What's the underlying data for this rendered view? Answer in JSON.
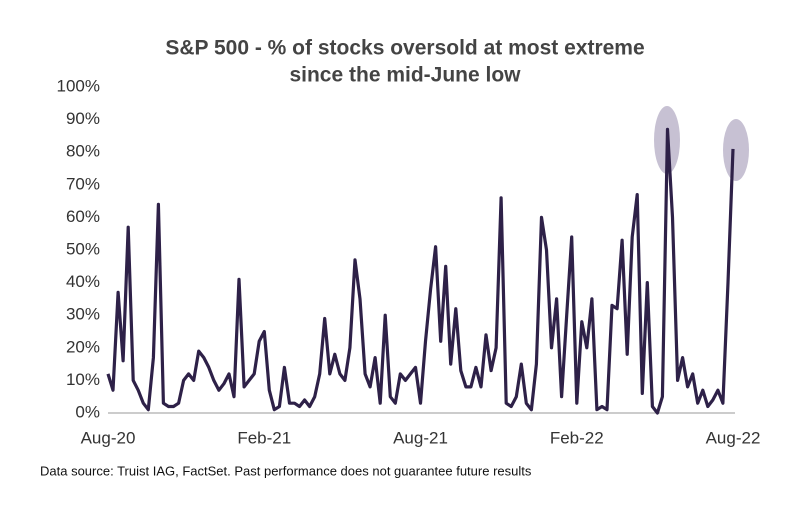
{
  "chart_data": {
    "type": "line",
    "title": [
      "S&P 500 - % of stocks oversold at most extreme",
      "since the mid-June low"
    ],
    "source": "Data source: Truist IAG, FactSet. Past performance does not guarantee future results",
    "categories": [
      "Aug-20",
      null,
      null,
      null,
      null,
      null,
      null,
      null,
      null,
      null,
      null,
      null,
      null,
      null,
      null,
      null,
      null,
      null,
      null,
      null,
      null,
      null,
      null,
      null,
      null,
      null,
      null,
      null,
      null,
      null,
      null,
      "Feb-21",
      null,
      null,
      null,
      null,
      null,
      null,
      null,
      null,
      null,
      null,
      null,
      null,
      null,
      null,
      null,
      null,
      null,
      null,
      null,
      null,
      null,
      null,
      null,
      null,
      null,
      null,
      null,
      null,
      null,
      null,
      "Aug-21",
      null,
      null,
      null,
      null,
      null,
      null,
      null,
      null,
      null,
      null,
      null,
      null,
      null,
      null,
      null,
      null,
      null,
      null,
      null,
      null,
      null,
      null,
      null,
      null,
      null,
      null,
      null,
      null,
      null,
      null,
      "Feb-22",
      null,
      null,
      null,
      null,
      null,
      null,
      null,
      null,
      null,
      null,
      null,
      null,
      null,
      null,
      null,
      null,
      null,
      null,
      null,
      null,
      null,
      null,
      null,
      null,
      null,
      null,
      null,
      null,
      null,
      null,
      "Aug-22"
    ],
    "values": [
      12,
      7,
      37,
      16,
      57,
      10,
      7,
      3,
      1,
      17,
      64,
      3,
      2,
      2,
      3,
      10,
      12,
      10,
      19,
      17,
      14,
      10,
      7,
      9,
      12,
      5,
      41,
      8,
      10,
      12,
      22,
      25,
      7,
      1,
      2,
      14,
      3,
      3,
      2,
      4,
      2,
      5,
      12,
      29,
      12,
      18,
      12,
      10,
      20,
      47,
      35,
      12,
      8,
      17,
      3,
      30,
      5,
      3,
      12,
      10,
      12,
      14,
      3,
      22,
      38,
      51,
      22,
      45,
      15,
      32,
      13,
      8,
      8,
      14,
      8,
      24,
      13,
      20,
      66,
      3,
      2,
      5,
      15,
      3,
      1,
      15,
      60,
      50,
      20,
      35,
      5,
      30,
      54,
      3,
      28,
      20,
      35,
      1,
      2,
      1,
      33,
      32,
      53,
      18,
      54,
      67,
      6,
      40,
      2,
      0,
      5,
      87,
      60,
      10,
      17,
      8,
      12,
      3,
      7,
      2,
      4,
      7,
      3,
      40,
      81
    ],
    "color": "#2e2148",
    "ylim": [
      0,
      100
    ],
    "yticks": [
      {
        "value": 0,
        "label": "0%"
      },
      {
        "value": 10,
        "label": "10%"
      },
      {
        "value": 20,
        "label": "20%"
      },
      {
        "value": 30,
        "label": "30%"
      },
      {
        "value": 40,
        "label": "40%"
      },
      {
        "value": 50,
        "label": "50%"
      },
      {
        "value": 60,
        "label": "60%"
      },
      {
        "value": 70,
        "label": "70%"
      },
      {
        "value": 80,
        "label": "80%"
      },
      {
        "value": 90,
        "label": "90%"
      },
      {
        "value": 100,
        "label": "100%"
      }
    ],
    "grid": false
  }
}
